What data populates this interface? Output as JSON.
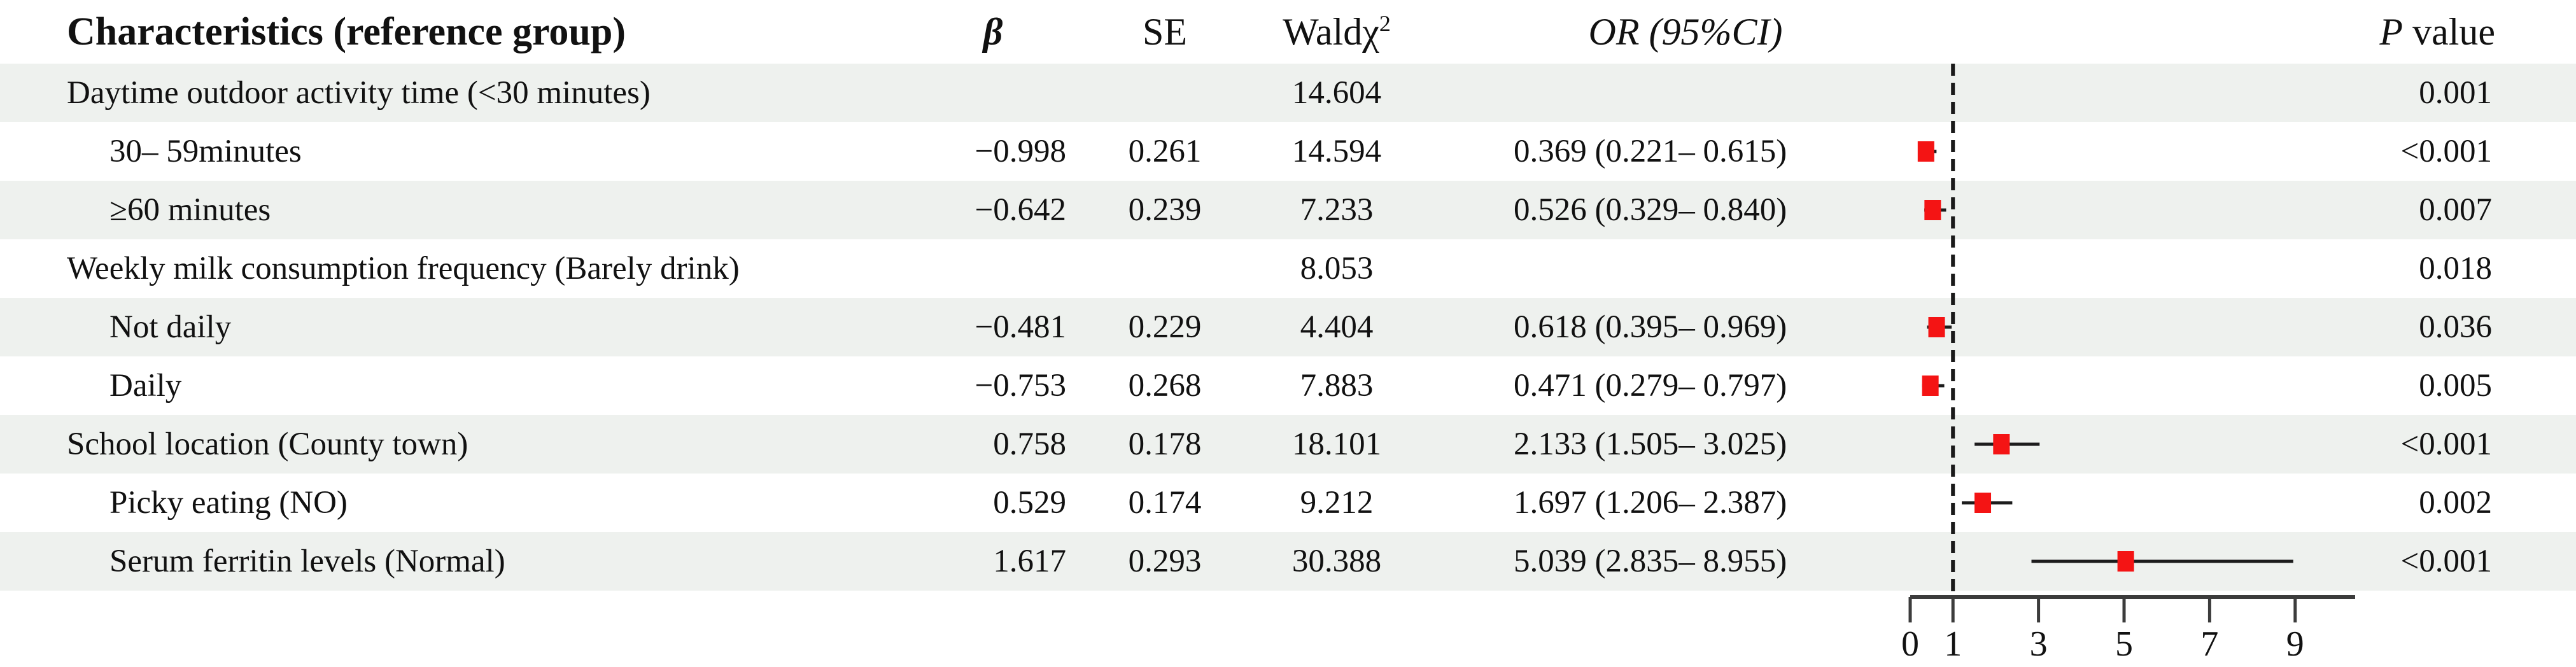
{
  "table": {
    "header": {
      "characteristics": "Characteristics (reference group)",
      "beta": "β",
      "se": "SE",
      "wald_prefix": "Waldχ",
      "wald_sup": "2",
      "or_ci": "OR (95%CI)",
      "p_italic": "P",
      "p_rest": " value"
    },
    "rows": [
      {
        "label": "Daytime outdoor activity time (<30 minutes)",
        "indent": false,
        "shaded": true,
        "beta": "",
        "se": "",
        "wald": "14.604",
        "or_ci": "",
        "p": "0.001"
      },
      {
        "label": "30– 59minutes",
        "indent": true,
        "shaded": false,
        "beta": "−0.998",
        "se": "0.261",
        "wald": "14.594",
        "or_ci": "0.369 (0.221– 0.615)",
        "p": "<0.001"
      },
      {
        "label": "≥60 minutes",
        "indent": true,
        "shaded": true,
        "beta": "−0.642",
        "se": "0.239",
        "wald": "7.233",
        "or_ci": "0.526 (0.329– 0.840)",
        "p": "0.007"
      },
      {
        "label": "Weekly milk consumption frequency (Barely drink)",
        "indent": false,
        "shaded": false,
        "beta": "",
        "se": "",
        "wald": "8.053",
        "or_ci": "",
        "p": "0.018"
      },
      {
        "label": "Not daily",
        "indent": true,
        "shaded": true,
        "beta": "−0.481",
        "se": "0.229",
        "wald": "4.404",
        "or_ci": "0.618 (0.395– 0.969)",
        "p": "0.036"
      },
      {
        "label": "Daily",
        "indent": true,
        "shaded": false,
        "beta": "−0.753",
        "se": "0.268",
        "wald": "7.883",
        "or_ci": "0.471 (0.279– 0.797)",
        "p": "0.005"
      },
      {
        "label": "School location (County town)",
        "indent": false,
        "shaded": true,
        "beta": "0.758",
        "se": "0.178",
        "wald": "18.101",
        "or_ci": "2.133 (1.505– 3.025)",
        "p": "<0.001"
      },
      {
        "label": "Picky eating (NO)",
        "indent": true,
        "shaded": false,
        "beta": "0.529",
        "se": "0.174",
        "wald": "9.212",
        "or_ci": "1.697 (1.206– 2.387)",
        "p": "0.002"
      },
      {
        "label": "Serum ferritin levels (Normal)",
        "indent": true,
        "shaded": true,
        "beta": "1.617",
        "se": "0.293",
        "wald": "30.388",
        "or_ci": "5.039 (2.835– 8.955)",
        "p": "<0.001"
      }
    ]
  },
  "chart_data": {
    "type": "forest",
    "title": "",
    "xlabel": "",
    "x_axis": {
      "ticks": [
        0,
        1,
        3,
        5,
        7,
        9
      ],
      "range": [
        0,
        10.4
      ],
      "reference_line": 1,
      "grid": false
    },
    "points": [
      {
        "row": 1,
        "label": "30– 59minutes",
        "or": 0.369,
        "ci_low": 0.221,
        "ci_high": 0.615
      },
      {
        "row": 2,
        "label": "≥60 minutes",
        "or": 0.526,
        "ci_low": 0.329,
        "ci_high": 0.84
      },
      {
        "row": 4,
        "label": "Not daily",
        "or": 0.618,
        "ci_low": 0.395,
        "ci_high": 0.969
      },
      {
        "row": 5,
        "label": "Daily",
        "or": 0.471,
        "ci_low": 0.279,
        "ci_high": 0.797
      },
      {
        "row": 6,
        "label": "School location (County town)",
        "or": 2.133,
        "ci_low": 1.505,
        "ci_high": 3.025
      },
      {
        "row": 7,
        "label": "Picky eating (NO)",
        "or": 1.697,
        "ci_low": 1.206,
        "ci_high": 2.387
      },
      {
        "row": 8,
        "label": "Serum ferritin levels (Normal)",
        "or": 5.039,
        "ci_low": 2.835,
        "ci_high": 8.955
      }
    ]
  },
  "colors": {
    "row_shade": "#eef1ee",
    "marker_red": "#f41414",
    "ci_line": "#1c1c1c",
    "axis_line": "#3c3c3c",
    "ref_line": "#1a1a1a",
    "text": "#111111"
  }
}
